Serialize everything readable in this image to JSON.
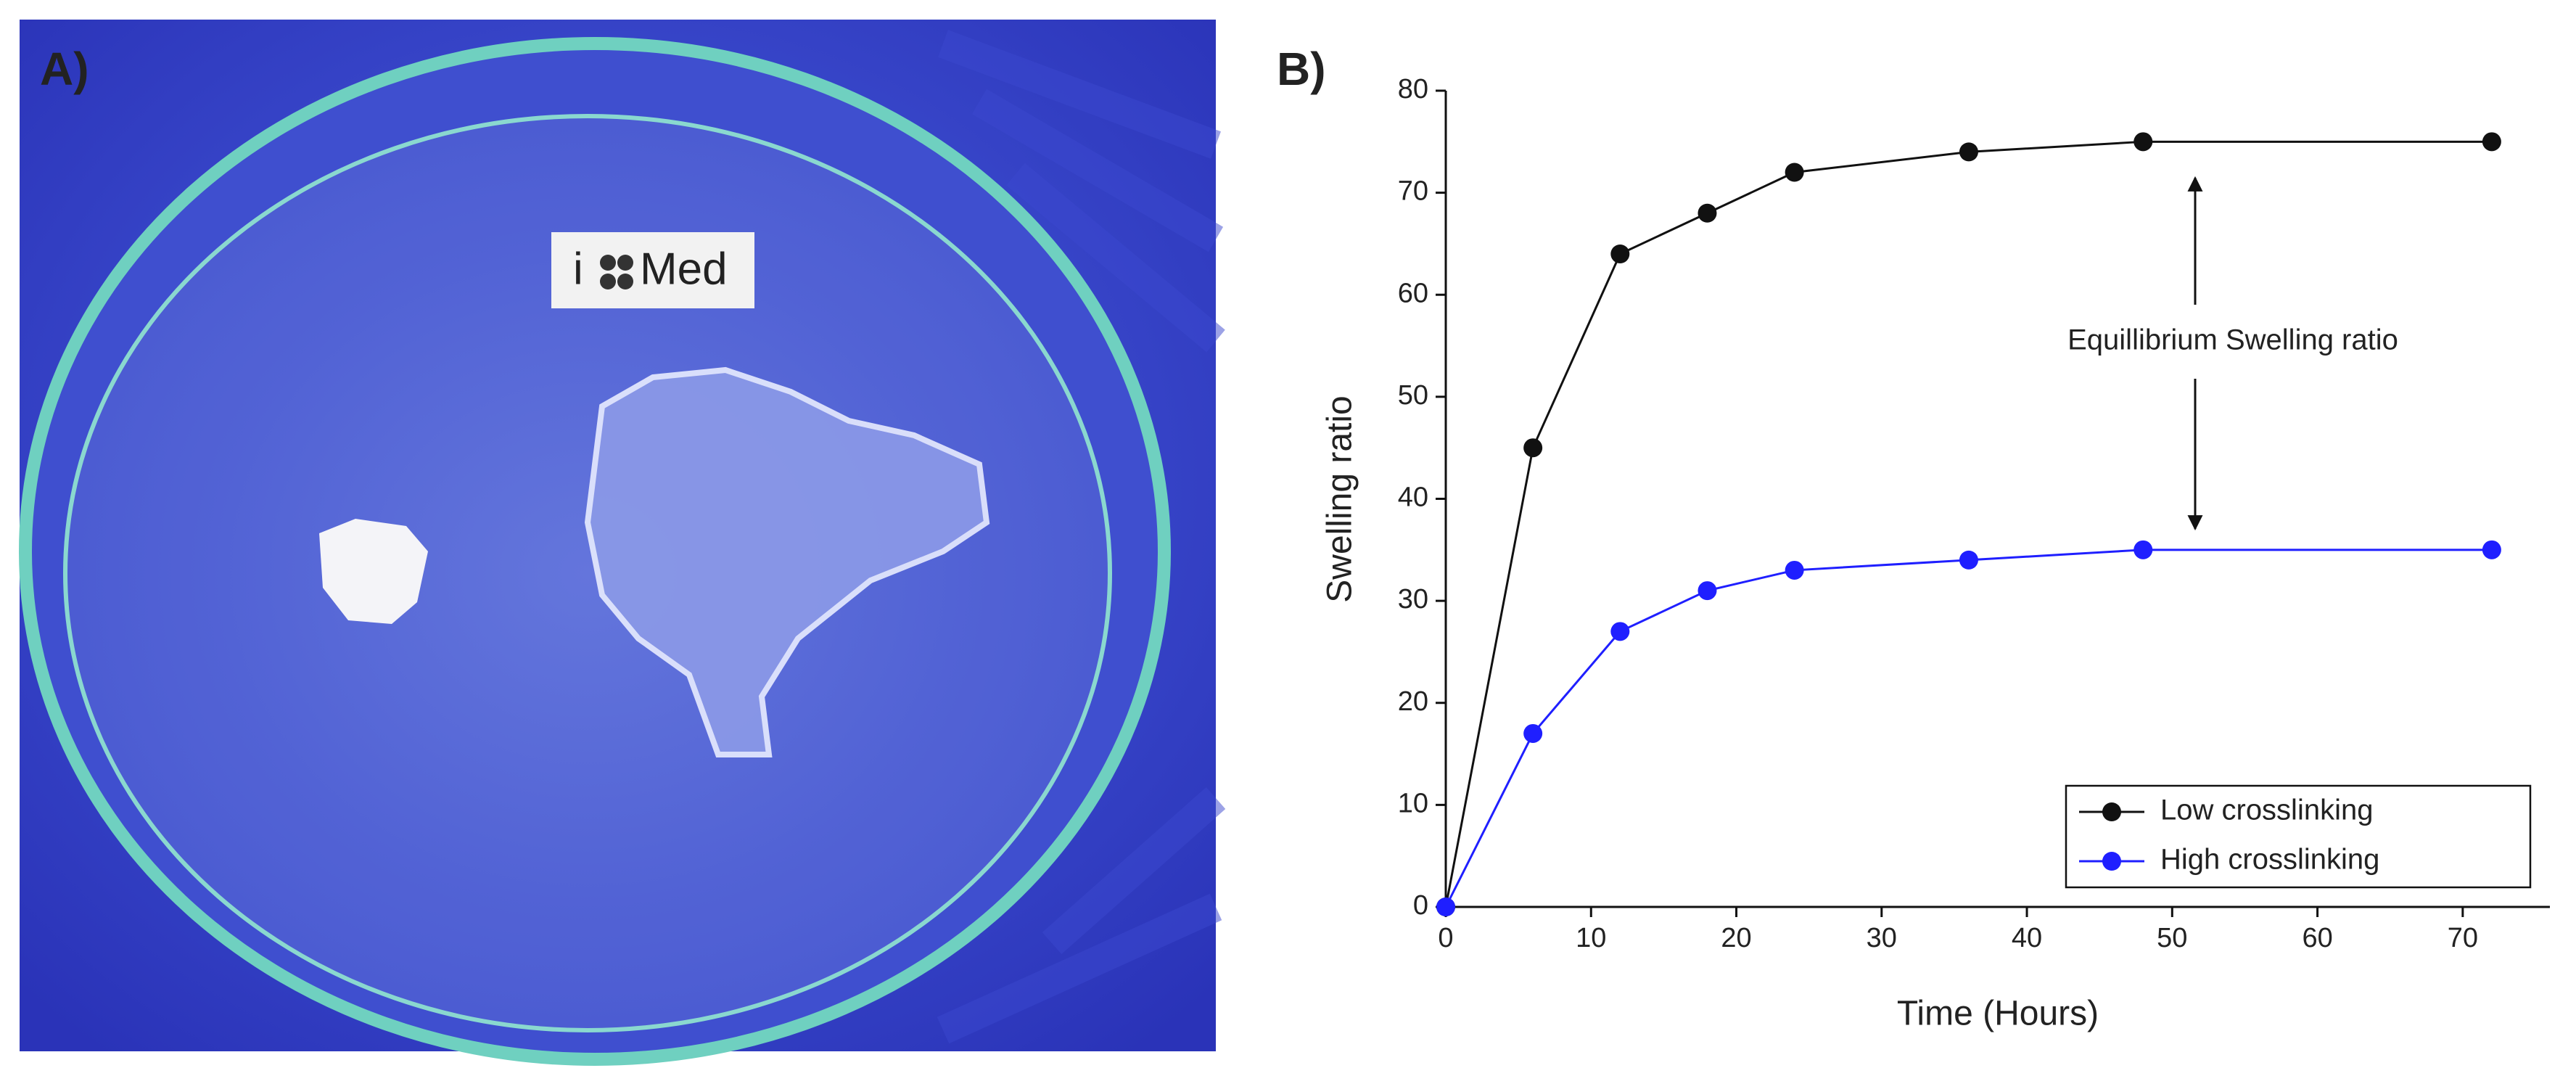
{
  "panel_labels": [
    "A)",
    "B)"
  ],
  "photo": {
    "label_parts": [
      "i",
      "Med"
    ]
  },
  "chart_data": {
    "type": "line",
    "x_label": "Time (Hours)",
    "y_label": "Swelling ratio",
    "annotation": "Equillibrium Swelling ratio",
    "x": [
      0,
      6,
      12,
      18,
      24,
      36,
      48,
      72
    ],
    "series": [
      {
        "name": "Low crosslinking",
        "color": "#111111",
        "values": [
          0,
          45,
          64,
          68,
          72,
          74,
          75,
          75
        ]
      },
      {
        "name": "High crosslinking",
        "color": "#1f1fff",
        "values": [
          0,
          17,
          27,
          31,
          33,
          34,
          35,
          35
        ]
      }
    ],
    "xlim": [
      0,
      76
    ],
    "ylim": [
      0,
      80
    ],
    "xticks": [
      0,
      10,
      20,
      30,
      40,
      50,
      60,
      70
    ],
    "yticks": [
      0,
      10,
      20,
      30,
      40,
      50,
      60,
      70,
      80
    ],
    "legend": "lower right"
  }
}
